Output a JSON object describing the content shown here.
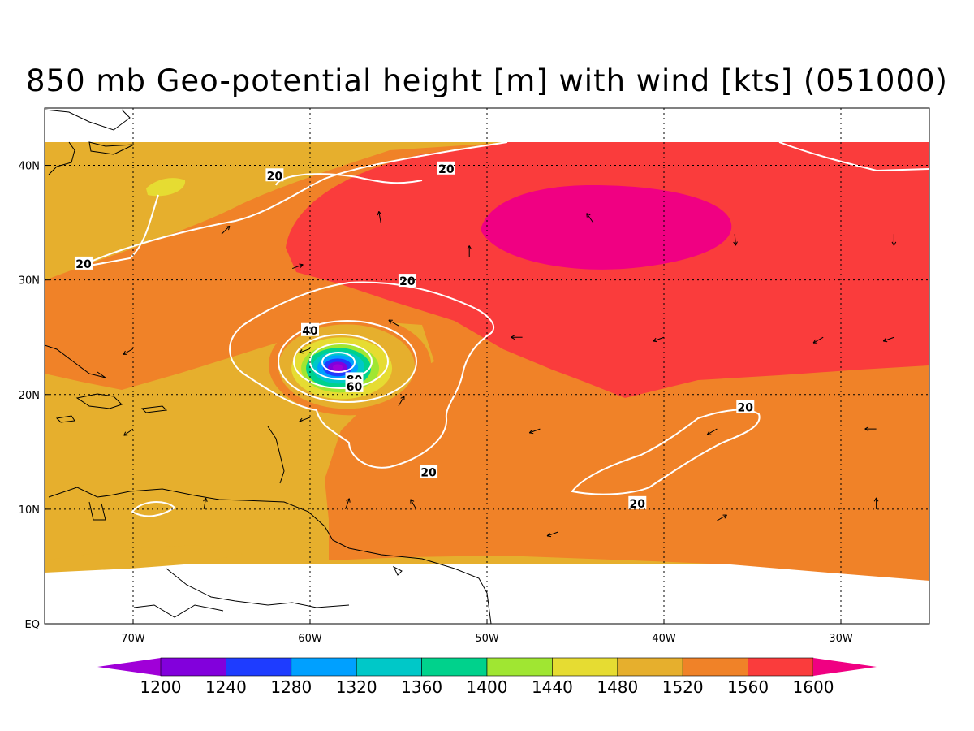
{
  "title": "850 mb Geo-potential height [m] with wind [kts] (051000)",
  "map": {
    "lon_range": [
      -75,
      -25
    ],
    "lat_range": [
      0,
      45
    ],
    "data_lat_max": 42,
    "lon_ticks": [
      {
        "value": -70,
        "label": "70W"
      },
      {
        "value": -60,
        "label": "60W"
      },
      {
        "value": -50,
        "label": "50W"
      },
      {
        "value": -40,
        "label": "40W"
      },
      {
        "value": -30,
        "label": "30W"
      }
    ],
    "lat_ticks": [
      {
        "value": 0,
        "label": "EQ"
      },
      {
        "value": 10,
        "label": "10N"
      },
      {
        "value": 20,
        "label": "20N"
      },
      {
        "value": 30,
        "label": "30N"
      },
      {
        "value": 40,
        "label": "40N"
      }
    ],
    "grid": "dotted",
    "storm_center": {
      "lon": -58.3,
      "lat": 22.3
    },
    "wind_contour_levels": [
      20,
      40,
      60,
      80
    ],
    "wind_contour_labels": [
      {
        "text": "20",
        "lon": -62,
        "lat": 39.1
      },
      {
        "text": "20",
        "lon": -52.3,
        "lat": 39.7
      },
      {
        "text": "20",
        "lon": -72.8,
        "lat": 31.4
      },
      {
        "text": "20",
        "lon": -54.5,
        "lat": 29.9
      },
      {
        "text": "20",
        "lon": -53.3,
        "lat": 13.2
      },
      {
        "text": "20",
        "lon": -35.4,
        "lat": 18.9
      },
      {
        "text": "20",
        "lon": -41.5,
        "lat": 10.5
      },
      {
        "text": "40",
        "lon": -60.0,
        "lat": 25.6
      },
      {
        "text": "80",
        "lon": -57.5,
        "lat": 21.3
      },
      {
        "text": "60",
        "lon": -57.5,
        "lat": 20.7
      }
    ]
  },
  "colorbar": {
    "levels": [
      "1200",
      "1240",
      "1280",
      "1320",
      "1360",
      "1400",
      "1440",
      "1480",
      "1520",
      "1560",
      "1600"
    ],
    "colors": [
      "#a000d8",
      "#8200dc",
      "#1e3cff",
      "#00a0ff",
      "#00c8c8",
      "#00d28c",
      "#a0e632",
      "#e6dc32",
      "#e6af2d",
      "#f08228",
      "#fa3c3c",
      "#f00082"
    ]
  },
  "colors": {
    "land_outline": "#000000",
    "contour": "#ffffff",
    "vector": "#000000"
  }
}
